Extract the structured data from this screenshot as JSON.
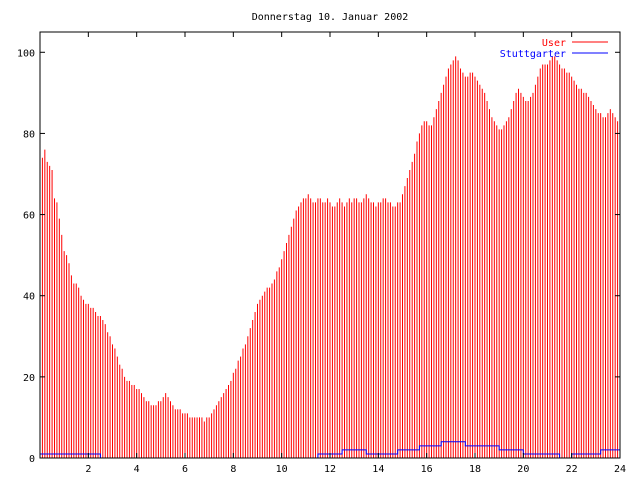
{
  "chart_data": {
    "type": "bar",
    "title": "Donnerstag 10. Januar 2002",
    "xlim": [
      0,
      24
    ],
    "ylim": [
      0,
      105
    ],
    "x_ticks": [
      2,
      4,
      6,
      8,
      10,
      12,
      14,
      16,
      18,
      20,
      22,
      24
    ],
    "y_ticks": [
      0,
      20,
      40,
      60,
      80,
      100
    ],
    "grid": false,
    "legend_position": "top-right",
    "series": [
      {
        "name": "User",
        "style": "impulses",
        "color": "#ff0000",
        "points": [
          [
            0.0,
            73
          ],
          [
            0.1,
            74
          ],
          [
            0.2,
            76
          ],
          [
            0.3,
            73
          ],
          [
            0.4,
            72
          ],
          [
            0.5,
            71
          ],
          [
            0.6,
            64
          ],
          [
            0.7,
            63
          ],
          [
            0.8,
            59
          ],
          [
            0.9,
            55
          ],
          [
            1.0,
            51
          ],
          [
            1.1,
            50
          ],
          [
            1.2,
            48
          ],
          [
            1.3,
            45
          ],
          [
            1.4,
            43
          ],
          [
            1.5,
            43
          ],
          [
            1.6,
            42
          ],
          [
            1.7,
            40
          ],
          [
            1.8,
            39
          ],
          [
            1.9,
            38
          ],
          [
            2.0,
            38
          ],
          [
            2.1,
            37
          ],
          [
            2.2,
            37
          ],
          [
            2.3,
            36
          ],
          [
            2.4,
            35
          ],
          [
            2.5,
            35
          ],
          [
            2.6,
            34
          ],
          [
            2.7,
            33
          ],
          [
            2.8,
            31
          ],
          [
            2.9,
            30
          ],
          [
            3.0,
            28
          ],
          [
            3.1,
            27
          ],
          [
            3.2,
            25
          ],
          [
            3.3,
            23
          ],
          [
            3.4,
            22
          ],
          [
            3.5,
            20
          ],
          [
            3.6,
            19
          ],
          [
            3.7,
            19
          ],
          [
            3.8,
            18
          ],
          [
            3.9,
            18
          ],
          [
            4.0,
            17
          ],
          [
            4.1,
            17
          ],
          [
            4.2,
            16
          ],
          [
            4.3,
            15
          ],
          [
            4.4,
            14
          ],
          [
            4.5,
            14
          ],
          [
            4.6,
            13
          ],
          [
            4.7,
            13
          ],
          [
            4.8,
            13
          ],
          [
            4.9,
            14
          ],
          [
            5.0,
            14
          ],
          [
            5.1,
            15
          ],
          [
            5.2,
            16
          ],
          [
            5.3,
            15
          ],
          [
            5.4,
            14
          ],
          [
            5.5,
            13
          ],
          [
            5.6,
            12
          ],
          [
            5.7,
            12
          ],
          [
            5.8,
            12
          ],
          [
            5.9,
            11
          ],
          [
            6.0,
            11
          ],
          [
            6.1,
            11
          ],
          [
            6.2,
            10
          ],
          [
            6.3,
            10
          ],
          [
            6.4,
            10
          ],
          [
            6.5,
            10
          ],
          [
            6.6,
            10
          ],
          [
            6.7,
            10
          ],
          [
            6.8,
            9
          ],
          [
            6.9,
            10
          ],
          [
            7.0,
            10
          ],
          [
            7.1,
            11
          ],
          [
            7.2,
            12
          ],
          [
            7.3,
            13
          ],
          [
            7.4,
            14
          ],
          [
            7.5,
            15
          ],
          [
            7.6,
            16
          ],
          [
            7.7,
            17
          ],
          [
            7.8,
            18
          ],
          [
            7.9,
            19
          ],
          [
            8.0,
            21
          ],
          [
            8.1,
            22
          ],
          [
            8.2,
            24
          ],
          [
            8.3,
            25
          ],
          [
            8.4,
            27
          ],
          [
            8.5,
            28
          ],
          [
            8.6,
            30
          ],
          [
            8.7,
            32
          ],
          [
            8.8,
            34
          ],
          [
            8.9,
            36
          ],
          [
            9.0,
            38
          ],
          [
            9.1,
            39
          ],
          [
            9.2,
            40
          ],
          [
            9.3,
            41
          ],
          [
            9.4,
            42
          ],
          [
            9.5,
            42
          ],
          [
            9.6,
            43
          ],
          [
            9.7,
            44
          ],
          [
            9.8,
            46
          ],
          [
            9.9,
            47
          ],
          [
            10.0,
            49
          ],
          [
            10.1,
            51
          ],
          [
            10.2,
            53
          ],
          [
            10.3,
            55
          ],
          [
            10.4,
            57
          ],
          [
            10.5,
            59
          ],
          [
            10.6,
            61
          ],
          [
            10.7,
            62
          ],
          [
            10.8,
            63
          ],
          [
            10.9,
            64
          ],
          [
            11.0,
            64
          ],
          [
            11.1,
            65
          ],
          [
            11.2,
            64
          ],
          [
            11.3,
            63
          ],
          [
            11.4,
            63
          ],
          [
            11.5,
            64
          ],
          [
            11.6,
            64
          ],
          [
            11.7,
            63
          ],
          [
            11.8,
            63
          ],
          [
            11.9,
            64
          ],
          [
            12.0,
            63
          ],
          [
            12.1,
            62
          ],
          [
            12.2,
            62
          ],
          [
            12.3,
            63
          ],
          [
            12.4,
            64
          ],
          [
            12.5,
            63
          ],
          [
            12.6,
            62
          ],
          [
            12.7,
            63
          ],
          [
            12.8,
            64
          ],
          [
            12.9,
            63
          ],
          [
            13.0,
            64
          ],
          [
            13.1,
            64
          ],
          [
            13.2,
            63
          ],
          [
            13.3,
            63
          ],
          [
            13.4,
            64
          ],
          [
            13.5,
            65
          ],
          [
            13.6,
            64
          ],
          [
            13.7,
            63
          ],
          [
            13.8,
            63
          ],
          [
            13.9,
            62
          ],
          [
            14.0,
            63
          ],
          [
            14.1,
            63
          ],
          [
            14.2,
            64
          ],
          [
            14.3,
            64
          ],
          [
            14.4,
            63
          ],
          [
            14.5,
            63
          ],
          [
            14.6,
            62
          ],
          [
            14.7,
            62
          ],
          [
            14.8,
            63
          ],
          [
            14.9,
            63
          ],
          [
            15.0,
            65
          ],
          [
            15.1,
            67
          ],
          [
            15.2,
            69
          ],
          [
            15.3,
            71
          ],
          [
            15.4,
            73
          ],
          [
            15.5,
            75
          ],
          [
            15.6,
            78
          ],
          [
            15.7,
            80
          ],
          [
            15.8,
            82
          ],
          [
            15.9,
            83
          ],
          [
            16.0,
            83
          ],
          [
            16.1,
            82
          ],
          [
            16.2,
            82
          ],
          [
            16.3,
            84
          ],
          [
            16.4,
            86
          ],
          [
            16.5,
            88
          ],
          [
            16.6,
            90
          ],
          [
            16.7,
            92
          ],
          [
            16.8,
            94
          ],
          [
            16.9,
            96
          ],
          [
            17.0,
            97
          ],
          [
            17.1,
            98
          ],
          [
            17.2,
            99
          ],
          [
            17.3,
            98
          ],
          [
            17.4,
            96
          ],
          [
            17.5,
            95
          ],
          [
            17.6,
            94
          ],
          [
            17.7,
            94
          ],
          [
            17.8,
            95
          ],
          [
            17.9,
            95
          ],
          [
            18.0,
            94
          ],
          [
            18.1,
            93
          ],
          [
            18.2,
            92
          ],
          [
            18.3,
            91
          ],
          [
            18.4,
            90
          ],
          [
            18.5,
            88
          ],
          [
            18.6,
            86
          ],
          [
            18.7,
            84
          ],
          [
            18.8,
            83
          ],
          [
            18.9,
            82
          ],
          [
            19.0,
            81
          ],
          [
            19.1,
            81
          ],
          [
            19.2,
            82
          ],
          [
            19.3,
            83
          ],
          [
            19.4,
            84
          ],
          [
            19.5,
            86
          ],
          [
            19.6,
            88
          ],
          [
            19.7,
            90
          ],
          [
            19.8,
            91
          ],
          [
            19.9,
            90
          ],
          [
            20.0,
            89
          ],
          [
            20.1,
            88
          ],
          [
            20.2,
            88
          ],
          [
            20.3,
            89
          ],
          [
            20.4,
            90
          ],
          [
            20.5,
            92
          ],
          [
            20.6,
            94
          ],
          [
            20.7,
            96
          ],
          [
            20.8,
            97
          ],
          [
            20.9,
            97
          ],
          [
            21.0,
            97
          ],
          [
            21.1,
            98
          ],
          [
            21.2,
            99
          ],
          [
            21.3,
            99
          ],
          [
            21.4,
            98
          ],
          [
            21.5,
            97
          ],
          [
            21.6,
            96
          ],
          [
            21.7,
            96
          ],
          [
            21.8,
            95
          ],
          [
            21.9,
            95
          ],
          [
            22.0,
            94
          ],
          [
            22.1,
            93
          ],
          [
            22.2,
            92
          ],
          [
            22.3,
            91
          ],
          [
            22.4,
            91
          ],
          [
            22.5,
            90
          ],
          [
            22.6,
            90
          ],
          [
            22.7,
            89
          ],
          [
            22.8,
            88
          ],
          [
            22.9,
            87
          ],
          [
            23.0,
            86
          ],
          [
            23.1,
            85
          ],
          [
            23.2,
            85
          ],
          [
            23.3,
            84
          ],
          [
            23.4,
            84
          ],
          [
            23.5,
            85
          ],
          [
            23.6,
            86
          ],
          [
            23.7,
            85
          ],
          [
            23.8,
            84
          ],
          [
            23.9,
            83
          ],
          [
            24.0,
            82
          ]
        ]
      },
      {
        "name": "Stuttgarter",
        "style": "steps",
        "color": "#0000ff",
        "points": [
          [
            0.0,
            1
          ],
          [
            2.5,
            1
          ],
          [
            2.5,
            0
          ],
          [
            11.5,
            0
          ],
          [
            11.5,
            1
          ],
          [
            12.5,
            1
          ],
          [
            12.5,
            2
          ],
          [
            13.5,
            2
          ],
          [
            13.5,
            1
          ],
          [
            14.8,
            1
          ],
          [
            14.8,
            2
          ],
          [
            15.7,
            2
          ],
          [
            15.7,
            3
          ],
          [
            16.6,
            3
          ],
          [
            16.6,
            4
          ],
          [
            17.6,
            4
          ],
          [
            17.6,
            3
          ],
          [
            19.0,
            3
          ],
          [
            19.0,
            2
          ],
          [
            20.0,
            2
          ],
          [
            20.0,
            1
          ],
          [
            21.5,
            1
          ],
          [
            21.5,
            0
          ],
          [
            22.0,
            0
          ],
          [
            22.0,
            1
          ],
          [
            23.2,
            1
          ],
          [
            23.2,
            2
          ],
          [
            24.0,
            2
          ]
        ]
      }
    ]
  }
}
